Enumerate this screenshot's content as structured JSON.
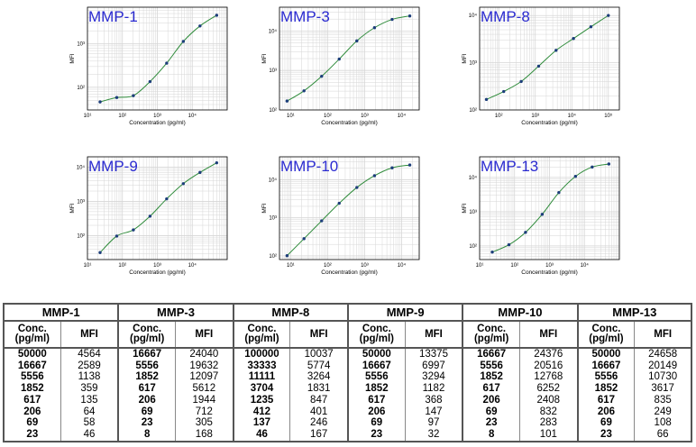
{
  "chart_data": [
    {
      "type": "scatter",
      "title": "MMP-1",
      "xlabel": "Concentration (pg/ml)",
      "ylabel": "MFI",
      "log_x": true,
      "log_y": true,
      "xlim": [
        10,
        100000
      ],
      "ylim": [
        30,
        7000
      ],
      "x_ticks": [
        "10¹",
        "10²",
        "10³",
        "10⁴"
      ],
      "y_ticks": [
        "10²",
        "10³"
      ],
      "conc": [
        50000,
        16667,
        5556,
        1852,
        617,
        206,
        69,
        23
      ],
      "mfi": [
        4564,
        2589,
        1138,
        359,
        135,
        64,
        58,
        46
      ]
    },
    {
      "type": "scatter",
      "title": "MMP-3",
      "xlabel": "Concentration (pg/ml)",
      "ylabel": "MFI",
      "log_x": true,
      "log_y": true,
      "xlim": [
        5,
        30000
      ],
      "ylim": [
        100,
        40000
      ],
      "x_ticks": [
        "10¹",
        "10²",
        "10³",
        "10⁴"
      ],
      "y_ticks": [
        "10²",
        "10³",
        "10⁴"
      ],
      "conc": [
        16667,
        5556,
        1852,
        617,
        206,
        69,
        23,
        8
      ],
      "mfi": [
        24040,
        19632,
        12097,
        5612,
        1944,
        712,
        305,
        168
      ]
    },
    {
      "type": "scatter",
      "title": "MMP-8",
      "xlabel": "Concentration (pg/ml)",
      "ylabel": "MFI",
      "log_x": true,
      "log_y": true,
      "xlim": [
        30,
        200000
      ],
      "ylim": [
        100,
        15000
      ],
      "x_ticks": [
        "10²",
        "10³",
        "10⁴",
        "10⁵"
      ],
      "y_ticks": [
        "10²",
        "10³",
        "10⁴"
      ],
      "conc": [
        100000,
        33333,
        11111,
        3704,
        1235,
        412,
        137,
        46
      ],
      "mfi": [
        10037,
        5774,
        3264,
        1831,
        847,
        401,
        246,
        167
      ]
    },
    {
      "type": "scatter",
      "title": "MMP-9",
      "xlabel": "Concentration (pg/ml)",
      "ylabel": "MFI",
      "log_x": true,
      "log_y": true,
      "xlim": [
        10,
        100000
      ],
      "ylim": [
        20,
        20000
      ],
      "x_ticks": [
        "10¹",
        "10²",
        "10³",
        "10⁴"
      ],
      "y_ticks": [
        "10²",
        "10³",
        "10⁴"
      ],
      "conc": [
        50000,
        16667,
        5556,
        1852,
        617,
        206,
        69,
        23
      ],
      "mfi": [
        13375,
        6997,
        3294,
        1182,
        368,
        147,
        97,
        32
      ]
    },
    {
      "type": "scatter",
      "title": "MMP-10",
      "xlabel": "Concentration (pg/ml)",
      "ylabel": "MFI",
      "log_x": true,
      "log_y": true,
      "xlim": [
        5,
        30000
      ],
      "ylim": [
        80,
        40000
      ],
      "x_ticks": [
        "10¹",
        "10²",
        "10³",
        "10⁴"
      ],
      "y_ticks": [
        "10²",
        "10³",
        "10⁴"
      ],
      "conc": [
        16667,
        5556,
        1852,
        617,
        206,
        69,
        23,
        8
      ],
      "mfi": [
        24376,
        20516,
        12768,
        6252,
        2408,
        832,
        283,
        101
      ]
    },
    {
      "type": "scatter",
      "title": "MMP-13",
      "xlabel": "Concentration (pg/ml)",
      "ylabel": "MFI",
      "log_x": true,
      "log_y": true,
      "xlim": [
        10,
        100000
      ],
      "ylim": [
        40,
        40000
      ],
      "x_ticks": [
        "10¹",
        "10²",
        "10³",
        "10⁴"
      ],
      "y_ticks": [
        "10²",
        "10³",
        "10⁴"
      ],
      "conc": [
        50000,
        16667,
        5556,
        1852,
        617,
        206,
        69,
        23
      ],
      "mfi": [
        24658,
        20149,
        10730,
        3617,
        835,
        249,
        108,
        66
      ]
    }
  ],
  "table": {
    "col_conc": "Conc.",
    "col_conc_unit": "(pg/ml)",
    "col_mfi": "MFI"
  },
  "colors": {
    "curve": "#2e8b3a",
    "point": "#1c3d7a",
    "title": "#2a2ad0",
    "grid": "#d6d6d6",
    "frame": "#000000"
  }
}
